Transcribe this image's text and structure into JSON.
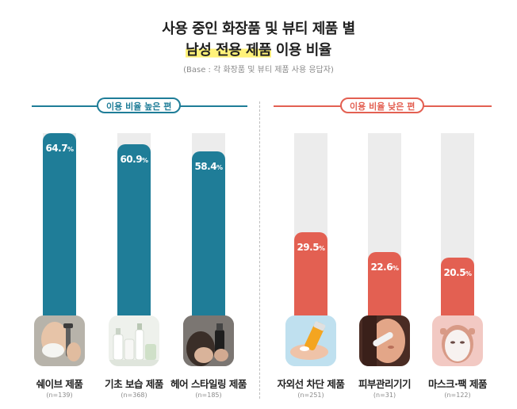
{
  "title": {
    "line1": "사용 중인 화장품 및 뷰티 제품 별",
    "line2_highlight": "남성 전용 제품",
    "line2_rest": " 이용 비율"
  },
  "base_note": "(Base : 각 화장품 및 뷰티 제품 사용 응답자)",
  "groups": [
    {
      "label": "이용 비율 높은 편",
      "color": "#1f7d98"
    },
    {
      "label": "이용 비율 낮은 편",
      "color": "#e36052"
    }
  ],
  "chart_data": {
    "type": "bar",
    "title": "사용 중인 화장품 및 뷰티 제품 별 남성 전용 제품 이용 비율",
    "ylim": [
      0,
      100
    ],
    "categories": [
      "쉐이브 제품",
      "기초 보습 제품",
      "헤어 스타일링 제품",
      "자외선 차단 제품",
      "피부관리기기",
      "마스크·팩 제품"
    ],
    "values": [
      64.7,
      60.9,
      58.4,
      29.5,
      22.6,
      20.5
    ],
    "value_labels": [
      "64.7",
      "60.9",
      "58.4",
      "29.5",
      "22.6",
      "20.5"
    ],
    "value_suffix": "%",
    "n_labels": [
      "(n=139)",
      "(n=368)",
      "(n=185)",
      "(n=251)",
      "(n=31)",
      "(n=122)"
    ],
    "group_index": [
      0,
      0,
      0,
      1,
      1,
      1
    ],
    "track_color": "#ececec",
    "image_icons": [
      "shaving-photo-icon",
      "moisturizer-bottles-photo-icon",
      "hair-spray-photo-icon",
      "sunscreen-photo-icon",
      "skin-device-photo-icon",
      "face-mask-photo-icon"
    ]
  }
}
